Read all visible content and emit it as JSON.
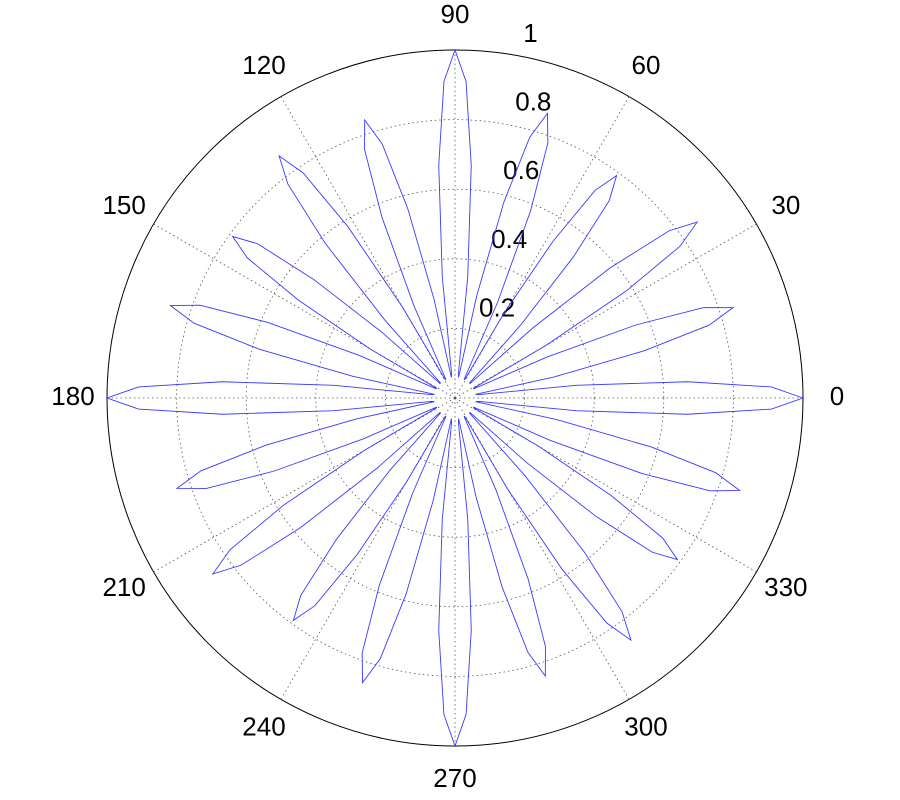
{
  "chart_data": {
    "type": "polar",
    "color": "#3a3aff",
    "rlim": [
      0,
      1
    ],
    "rticks": [
      0.2,
      0.4,
      0.6,
      0.8,
      1
    ],
    "thetaticks": [
      0,
      30,
      60,
      90,
      120,
      150,
      180,
      210,
      240,
      270,
      300,
      330
    ],
    "grid": true,
    "theta": [
      0,
      2,
      4,
      6,
      8,
      10,
      12,
      14,
      16,
      18,
      20,
      22,
      24,
      26,
      28,
      30,
      32,
      34,
      36,
      38,
      40,
      42,
      44,
      46,
      48,
      50,
      52,
      54,
      56,
      58,
      60,
      62,
      64,
      66,
      68,
      70,
      72,
      74,
      76,
      78,
      80,
      82,
      84,
      86,
      88,
      90,
      92,
      94,
      96,
      98,
      100,
      102,
      104,
      106,
      108,
      110,
      112,
      114,
      116,
      118,
      120,
      122,
      124,
      126,
      128,
      130,
      132,
      134,
      136,
      138,
      140,
      142,
      144,
      146,
      148,
      150,
      152,
      154,
      156,
      158,
      160,
      162,
      164,
      166,
      168,
      170,
      172,
      174,
      176,
      178,
      180,
      182,
      184,
      186,
      188,
      190,
      192,
      194,
      196,
      198,
      200,
      202,
      204,
      206,
      208,
      210,
      212,
      214,
      216,
      218,
      220,
      222,
      224,
      226,
      228,
      230,
      232,
      234,
      236,
      238,
      240,
      242,
      244,
      246,
      248,
      250,
      252,
      254,
      256,
      258,
      260,
      262,
      264,
      266,
      268,
      270,
      272,
      274,
      276,
      278,
      280,
      282,
      284,
      286,
      288,
      290,
      292,
      294,
      296,
      298,
      300,
      302,
      304,
      306,
      308,
      310,
      312,
      314,
      316,
      318,
      320,
      322,
      324,
      326,
      328,
      330,
      332,
      334,
      336,
      338,
      340,
      342,
      344,
      346,
      348,
      350,
      352,
      354,
      356,
      358
    ],
    "r": [
      1,
      0.91,
      0.67,
      0.35,
      0.07,
      0.06,
      0.29,
      0.56,
      0.76,
      0.84,
      0.76,
      0.56,
      0.29,
      0.06,
      0.06,
      0.3,
      0.58,
      0.78,
      0.86,
      0.78,
      0.58,
      0.3,
      0.06,
      0.06,
      0.28,
      0.53,
      0.72,
      0.79,
      0.72,
      0.53,
      0.28,
      0.06,
      0.06,
      0.3,
      0.58,
      0.78,
      0.86,
      0.78,
      0.58,
      0.3,
      0.06,
      0.07,
      0.35,
      0.67,
      0.91,
      1,
      0.91,
      0.67,
      0.35,
      0.07,
      0.06,
      0.29,
      0.56,
      0.76,
      0.84,
      0.76,
      0.56,
      0.29,
      0.06,
      0.06,
      0.3,
      0.58,
      0.78,
      0.86,
      0.78,
      0.58,
      0.3,
      0.06,
      0.06,
      0.28,
      0.53,
      0.72,
      0.79,
      0.72,
      0.53,
      0.28,
      0.06,
      0.06,
      0.3,
      0.58,
      0.78,
      0.86,
      0.78,
      0.58,
      0.3,
      0.06,
      0.07,
      0.35,
      0.67,
      0.91,
      1,
      0.91,
      0.67,
      0.35,
      0.07,
      0.06,
      0.29,
      0.56,
      0.76,
      0.84,
      0.76,
      0.56,
      0.29,
      0.06,
      0.06,
      0.3,
      0.58,
      0.78,
      0.86,
      0.78,
      0.58,
      0.3,
      0.06,
      0.06,
      0.28,
      0.53,
      0.72,
      0.79,
      0.72,
      0.53,
      0.28,
      0.06,
      0.06,
      0.3,
      0.58,
      0.78,
      0.86,
      0.78,
      0.58,
      0.3,
      0.06,
      0.07,
      0.35,
      0.67,
      0.91,
      1,
      0.91,
      0.67,
      0.35,
      0.07,
      0.06,
      0.29,
      0.56,
      0.76,
      0.84,
      0.76,
      0.56,
      0.29,
      0.06,
      0.06,
      0.3,
      0.58,
      0.78,
      0.86,
      0.78,
      0.58,
      0.3,
      0.06,
      0.06,
      0.28,
      0.53,
      0.72,
      0.79,
      0.72,
      0.53,
      0.28,
      0.06,
      0.06,
      0.3,
      0.58,
      0.78,
      0.86,
      0.78,
      0.58,
      0.3,
      0.06,
      0.07,
      0.35,
      0.67,
      0.91
    ]
  }
}
